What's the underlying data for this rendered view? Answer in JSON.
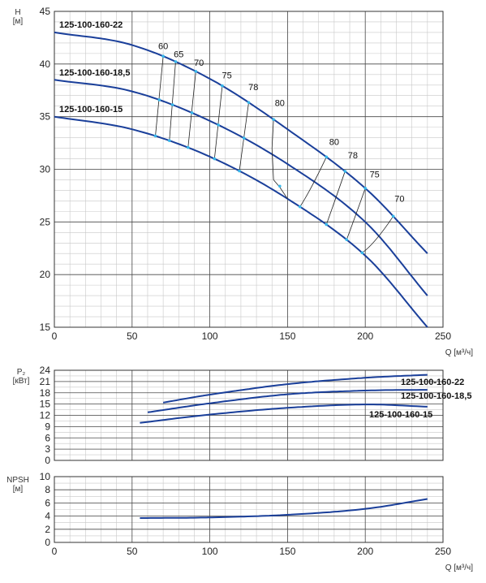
{
  "chart_data": [
    {
      "type": "line",
      "xlabel": "Q [м³/ч]",
      "ylabel": "H [м]",
      "xlim": [
        0,
        250
      ],
      "ylim": [
        15,
        45
      ],
      "xticks": [
        0,
        50,
        100,
        150,
        200,
        250
      ],
      "yticks": [
        15,
        20,
        25,
        30,
        35,
        40,
        45
      ],
      "grid": true,
      "series": [
        {
          "name": "125-100-160-22",
          "x": [
            0,
            50,
            100,
            150,
            200,
            240
          ],
          "y": [
            43.0,
            41.8,
            38.6,
            33.8,
            28.2,
            22.0
          ]
        },
        {
          "name": "125-100-160-18,5",
          "x": [
            0,
            50,
            100,
            150,
            200,
            240
          ],
          "y": [
            38.5,
            37.4,
            34.6,
            30.5,
            25.0,
            18.0
          ]
        },
        {
          "name": "125-100-160-15",
          "x": [
            0,
            50,
            100,
            150,
            200,
            240
          ],
          "y": [
            35.0,
            33.8,
            31.2,
            27.2,
            21.8,
            15.0
          ]
        }
      ],
      "efficiency_labels": [
        {
          "label": "60",
          "x": 70,
          "y": 41.2
        },
        {
          "label": "65",
          "x": 80,
          "y": 40.4
        },
        {
          "label": "70",
          "x": 93,
          "y": 39.6
        },
        {
          "label": "75",
          "x": 111,
          "y": 38.4
        },
        {
          "label": "78",
          "x": 128,
          "y": 37.3
        },
        {
          "label": "80",
          "x": 145,
          "y": 35.8
        },
        {
          "label": "80",
          "x": 180,
          "y": 32.1
        },
        {
          "label": "78",
          "x": 192,
          "y": 30.8
        },
        {
          "label": "75",
          "x": 206,
          "y": 29.0
        },
        {
          "label": "70",
          "x": 222,
          "y": 26.7
        }
      ]
    },
    {
      "type": "line",
      "xlabel": "",
      "ylabel": "P₂ [кВт]",
      "xlim": [
        0,
        250
      ],
      "ylim": [
        0,
        24
      ],
      "yticks": [
        0,
        3,
        6,
        9,
        12,
        15,
        18,
        21,
        24
      ],
      "grid": true,
      "series": [
        {
          "name": "125-100-160-22",
          "x": [
            70,
            100,
            150,
            200,
            240
          ],
          "y": [
            15.4,
            17.5,
            20.3,
            22.0,
            22.8
          ]
        },
        {
          "name": "125-100-160-18,5",
          "x": [
            60,
            100,
            150,
            200,
            240
          ],
          "y": [
            12.8,
            15.2,
            17.6,
            18.6,
            18.8
          ]
        },
        {
          "name": "125-100-160-15",
          "x": [
            55,
            100,
            150,
            200,
            240
          ],
          "y": [
            10.0,
            12.2,
            14.0,
            14.9,
            14.3
          ]
        }
      ]
    },
    {
      "type": "line",
      "xlabel": "Q [м³/ч]",
      "ylabel": "NPSH [м]",
      "xlim": [
        0,
        250
      ],
      "ylim": [
        0,
        10
      ],
      "xticks": [
        0,
        50,
        100,
        150,
        200,
        250
      ],
      "yticks": [
        0,
        2,
        4,
        6,
        8,
        10
      ],
      "grid": true,
      "series": [
        {
          "name": "",
          "x": [
            55,
            100,
            150,
            200,
            240
          ],
          "y": [
            3.7,
            3.8,
            4.2,
            5.1,
            6.6
          ]
        }
      ]
    }
  ],
  "labels": {
    "h_axis_title": "H",
    "h_axis_unit": "[м]",
    "q_axis_label": "Q [м³/ч]",
    "p_axis_title": "P₂",
    "p_axis_unit": "[кВт]",
    "npsh_axis_title": "NPSH",
    "npsh_axis_unit": "[м]"
  },
  "colors": {
    "curve": "#1a3f9a",
    "marker": "#37b7ea",
    "iso": "#222222"
  }
}
